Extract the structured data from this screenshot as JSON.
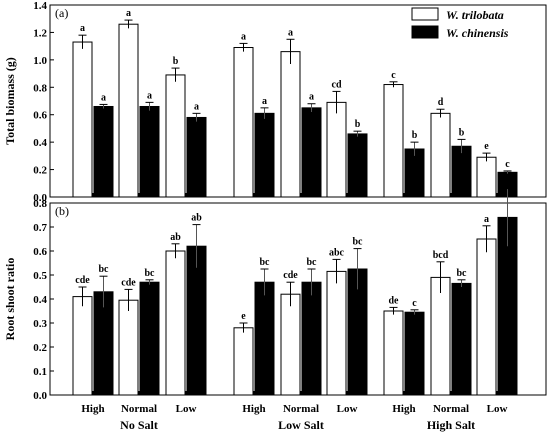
{
  "chart_data": [
    {
      "panel_label": "(a)",
      "type": "bar",
      "ylabel": "Total biomass (g)",
      "ylim": [
        0.0,
        1.4
      ],
      "yticks": [
        "0.0",
        "0.2",
        "0.4",
        "0.6",
        "0.8",
        "1.0",
        "1.2",
        "1.4"
      ],
      "series": [
        {
          "name": "W. trilobata",
          "color": "#ffffff",
          "values": [
            1.13,
            1.26,
            0.89,
            1.09,
            1.06,
            0.69,
            0.82,
            0.61,
            0.29
          ],
          "errors": [
            0.05,
            0.03,
            0.05,
            0.03,
            0.09,
            0.08,
            0.02,
            0.03,
            0.03
          ],
          "letters": [
            "a",
            "a",
            "b",
            "a",
            "a",
            "cd",
            "c",
            "d",
            "e"
          ]
        },
        {
          "name": "W. chinensis",
          "color": "#000000",
          "values": [
            0.66,
            0.66,
            0.58,
            0.61,
            0.65,
            0.46,
            0.35,
            0.37,
            0.18
          ],
          "errors": [
            0.015,
            0.03,
            0.03,
            0.04,
            0.03,
            0.02,
            0.05,
            0.05,
            0.01
          ],
          "letters": [
            "a",
            "a",
            "a",
            "a",
            "a",
            "b",
            "b",
            "b",
            "c"
          ]
        }
      ]
    },
    {
      "panel_label": "(b)",
      "type": "bar",
      "ylabel": "Root shoot ratio",
      "ylim": [
        0.0,
        0.8
      ],
      "yticks": [
        "0.0",
        "0.1",
        "0.2",
        "0.3",
        "0.4",
        "0.5",
        "0.6",
        "0.7",
        "0.8"
      ],
      "categories": [
        "High",
        "Normal",
        "Low",
        "High",
        "Normal",
        "Low",
        "High",
        "Normal",
        "Low"
      ],
      "groups": [
        "No Salt",
        "Low Salt",
        "High Salt"
      ],
      "series": [
        {
          "name": "W. trilobata",
          "color": "#ffffff",
          "values": [
            0.41,
            0.395,
            0.6,
            0.28,
            0.42,
            0.515,
            0.35,
            0.49,
            0.65
          ],
          "errors": [
            0.04,
            0.045,
            0.03,
            0.02,
            0.05,
            0.05,
            0.015,
            0.065,
            0.055
          ],
          "letters": [
            "cde",
            "cde",
            "ab",
            "e",
            "cde",
            "abc",
            "de",
            "bcd",
            "a"
          ]
        },
        {
          "name": "W. chinensis",
          "color": "#000000",
          "values": [
            0.43,
            0.47,
            0.62,
            0.47,
            0.47,
            0.525,
            0.345,
            0.465,
            0.74
          ],
          "errors": [
            0.065,
            0.01,
            0.09,
            0.055,
            0.055,
            0.085,
            0.01,
            0.015,
            0.12
          ],
          "letters": [
            "bc",
            "bc",
            "ab",
            "bc",
            "bc",
            "bc",
            "c",
            "bc",
            "a"
          ]
        }
      ]
    }
  ],
  "legend": {
    "items": [
      {
        "label": "W. trilobata",
        "color": "#ffffff"
      },
      {
        "label": "W. chinensis",
        "color": "#000000"
      }
    ]
  }
}
